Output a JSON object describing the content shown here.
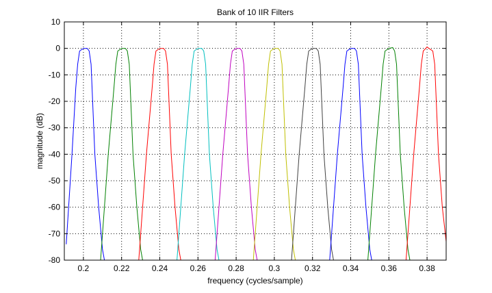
{
  "chart_data": {
    "type": "line",
    "title": "Bank of 10 IIR Filters",
    "xlabel": "frequency (cycles/sample)",
    "ylabel": "magnitude (dB)",
    "xlim": [
      0.19,
      0.39
    ],
    "ylim": [
      -80,
      10
    ],
    "xticks": [
      0.2,
      0.22,
      0.24,
      0.26,
      0.28,
      0.3,
      0.32,
      0.34,
      0.36,
      0.38
    ],
    "xtick_labels": [
      "0.2",
      "0.22",
      "0.24",
      "0.26",
      "0.28",
      "0.3",
      "0.32",
      "0.34",
      "0.36",
      "0.38"
    ],
    "yticks": [
      -80,
      -70,
      -60,
      -50,
      -40,
      -30,
      -20,
      -10,
      0,
      10
    ],
    "ytick_labels": [
      "-80",
      "-70",
      "-60",
      "-50",
      "-40",
      "-30",
      "-20",
      "-10",
      "0",
      "10"
    ],
    "grid": true,
    "legend": "none",
    "series": [
      {
        "color": "#0000ff",
        "x": [
          0.191,
          0.194,
          0.196,
          0.197,
          0.198,
          0.2,
          0.202,
          0.203,
          0.204,
          0.206,
          0.208,
          0.21,
          0.211
        ],
        "y": [
          -74,
          -40,
          -15,
          -6,
          -1,
          0,
          0,
          -1,
          -6,
          -40,
          -60,
          -76,
          -80
        ]
      },
      {
        "color": "#008000",
        "x": [
          0.209,
          0.213,
          0.216,
          0.217,
          0.218,
          0.22,
          0.222,
          0.223,
          0.224,
          0.226,
          0.228,
          0.23,
          0.231
        ],
        "y": [
          -80,
          -40,
          -15,
          -6,
          -1,
          0,
          0,
          -1,
          -6,
          -40,
          -60,
          -76,
          -80
        ]
      },
      {
        "color": "#ff0000",
        "x": [
          0.229,
          0.233,
          0.236,
          0.237,
          0.238,
          0.24,
          0.242,
          0.243,
          0.244,
          0.246,
          0.248,
          0.25,
          0.251
        ],
        "y": [
          -80,
          -40,
          -15,
          -6,
          -1,
          0,
          0,
          -1,
          -6,
          -40,
          -60,
          -76,
          -80
        ]
      },
      {
        "color": "#00bfbf",
        "x": [
          0.249,
          0.253,
          0.256,
          0.257,
          0.258,
          0.26,
          0.262,
          0.263,
          0.264,
          0.266,
          0.268,
          0.27,
          0.271
        ],
        "y": [
          -80,
          -40,
          -15,
          -6,
          -1,
          0,
          0,
          -1,
          -6,
          -40,
          -60,
          -76,
          -80
        ]
      },
      {
        "color": "#bf00bf",
        "x": [
          0.269,
          0.273,
          0.276,
          0.277,
          0.278,
          0.28,
          0.282,
          0.283,
          0.284,
          0.286,
          0.288,
          0.29,
          0.291
        ],
        "y": [
          -80,
          -40,
          -15,
          -6,
          -1,
          0,
          0,
          -1,
          -6,
          -40,
          -60,
          -76,
          -80
        ]
      },
      {
        "color": "#bfbf00",
        "x": [
          0.289,
          0.293,
          0.296,
          0.297,
          0.298,
          0.3,
          0.302,
          0.303,
          0.304,
          0.306,
          0.308,
          0.31,
          0.311
        ],
        "y": [
          -80,
          -40,
          -15,
          -6,
          -1,
          0,
          0,
          -1,
          -6,
          -40,
          -60,
          -76,
          -80
        ]
      },
      {
        "color": "#404040",
        "x": [
          0.309,
          0.313,
          0.316,
          0.317,
          0.318,
          0.32,
          0.322,
          0.323,
          0.324,
          0.326,
          0.328,
          0.33,
          0.331
        ],
        "y": [
          -80,
          -40,
          -15,
          -6,
          -1,
          0,
          0,
          -1,
          -6,
          -40,
          -60,
          -76,
          -80
        ]
      },
      {
        "color": "#0000ff",
        "x": [
          0.329,
          0.333,
          0.336,
          0.337,
          0.338,
          0.34,
          0.342,
          0.343,
          0.344,
          0.346,
          0.348,
          0.35,
          0.351
        ],
        "y": [
          -80,
          -40,
          -15,
          -6,
          -1,
          0,
          0,
          -1,
          -6,
          -40,
          -60,
          -76,
          -80
        ]
      },
      {
        "color": "#008000",
        "x": [
          0.349,
          0.353,
          0.356,
          0.357,
          0.358,
          0.36,
          0.362,
          0.363,
          0.364,
          0.366,
          0.368,
          0.37,
          0.371
        ],
        "y": [
          -80,
          -40,
          -15,
          -6,
          -1,
          0,
          0.3,
          -1,
          -6,
          -40,
          -60,
          -76,
          -80
        ]
      },
      {
        "color": "#ff0000",
        "x": [
          0.369,
          0.373,
          0.376,
          0.377,
          0.378,
          0.38,
          0.381,
          0.383,
          0.384,
          0.386,
          0.388,
          0.39
        ],
        "y": [
          -80,
          -40,
          -15,
          -6,
          -1,
          0.5,
          0,
          -1,
          -6,
          -40,
          -60,
          -73
        ]
      }
    ]
  }
}
